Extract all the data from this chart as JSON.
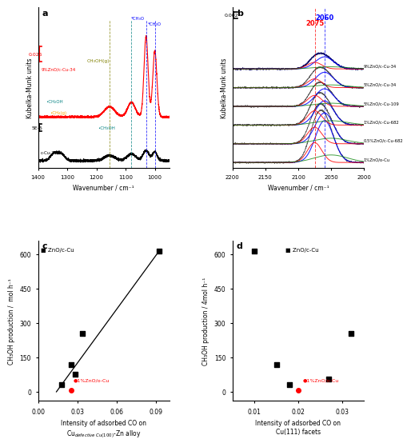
{
  "panel_a": {
    "label": "a",
    "scalebar_red": "0.025",
    "scalebar_black": "5E-5",
    "xlabel": "Wavenumber / cm⁻¹",
    "ylabel": "Kubelka-Munk units",
    "xlim": [
      1400,
      950
    ],
    "xticks": [
      1400,
      1300,
      1200,
      1100,
      1000
    ],
    "dashed_lines": [
      1155,
      1080,
      1030,
      1000
    ],
    "dashed_colors": [
      "#808000",
      "#008080",
      "#0000ff",
      "#0000ff"
    ]
  },
  "panel_b": {
    "label": "b",
    "scalebar": "0.002",
    "xlabel": "Wavenumber / cm⁻¹",
    "ylabel": "Kubelka-Munk units",
    "xlim": [
      2200,
      2000
    ],
    "xticks": [
      2200,
      2150,
      2100,
      2050,
      2000
    ],
    "peak_red": 2075,
    "peak_blue": 2060,
    "samples": [
      "9%ZnO/c-Cu-34",
      "5%ZnO/c-Cu-34",
      "5%ZnO/c-Cu-109",
      "1%ZnO/c-Cu-682",
      "0.5%ZnO/c-Cu-682",
      "1%ZnO/o-Cu"
    ]
  },
  "panel_c": {
    "label": "c",
    "xlabel_line1": "Intensity of adsorbed CO on",
    "xlabel_line2": "Cu$_{defective\\ Cu(100)}$-Zn alloy",
    "ylabel": "CH₃OH production /  mol h⁻¹",
    "xlim": [
      0.0,
      0.1
    ],
    "ylim": [
      -40,
      660
    ],
    "xticks": [
      0.0,
      0.03,
      0.06,
      0.09
    ],
    "yticks": [
      0,
      150,
      300,
      450,
      600
    ],
    "black_points": [
      [
        0.018,
        30
      ],
      [
        0.025,
        120
      ],
      [
        0.028,
        75
      ],
      [
        0.034,
        255
      ],
      [
        0.092,
        612
      ]
    ],
    "red_point": [
      0.025,
      8
    ],
    "red_label": "1%ZnO/o-Cu",
    "black_label": "ZnO/c-Cu",
    "fit_x": [
      0.014,
      0.092
    ],
    "fit_y": [
      0,
      612
    ]
  },
  "panel_d": {
    "label": "d",
    "xlabel_line1": "Intensity of adsorbed CO on",
    "xlabel_line2": "Cu(111) facets",
    "ylabel": "CH₃OH production / 4mol h⁻¹",
    "xlim": [
      0.005,
      0.035
    ],
    "ylim": [
      -40,
      660
    ],
    "xticks": [
      0.01,
      0.02,
      0.03
    ],
    "yticks": [
      0,
      150,
      300,
      450,
      600
    ],
    "black_points": [
      [
        0.01,
        612
      ],
      [
        0.015,
        120
      ],
      [
        0.018,
        30
      ],
      [
        0.027,
        55
      ],
      [
        0.032,
        255
      ]
    ],
    "red_point": [
      0.02,
      8
    ],
    "red_label": "1%ZnO/o-Cu",
    "black_label": "ZnO/c-Cu"
  },
  "bg_color": "#ffffff"
}
